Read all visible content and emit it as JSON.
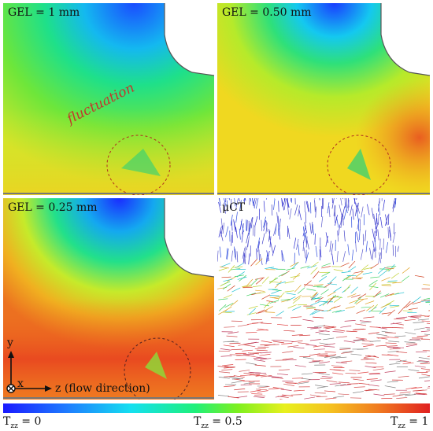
{
  "panels": [
    {
      "label": "GEL = 1 mm"
    },
    {
      "label": "GEL = 0.50 mm"
    },
    {
      "label": "GEL = 0.25 mm"
    },
    {
      "label": "μCT"
    }
  ],
  "annotation": {
    "fluctuation": "fluctuation"
  },
  "axes": {
    "y": "y",
    "x": "x",
    "z": "z (flow direction)"
  },
  "colorbar": {
    "min_label": "= 0",
    "mid_label": "= 0.5",
    "max_label": "= 1",
    "symbol": "T",
    "symbol_sub": "zz"
  }
}
